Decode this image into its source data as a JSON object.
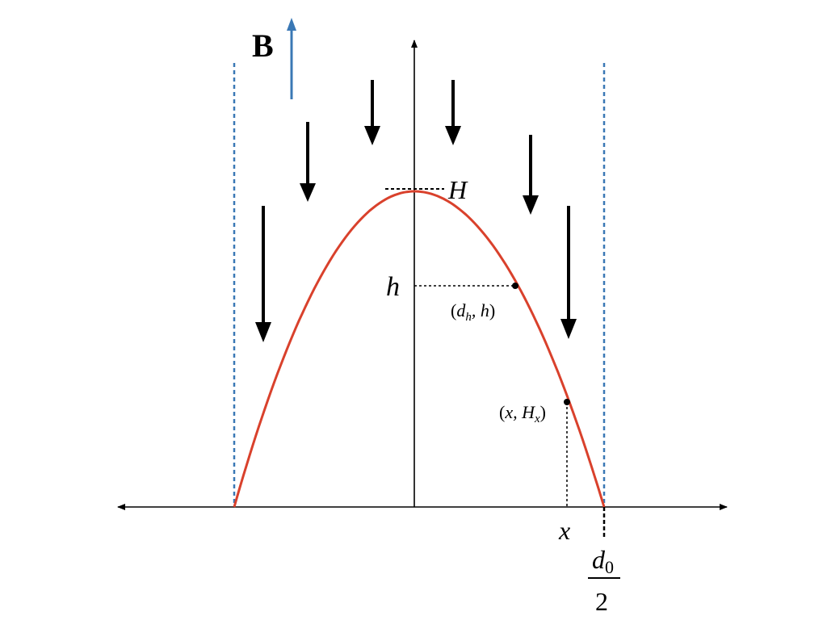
{
  "field_label": "B",
  "labels": {
    "peak": "H",
    "height": "h",
    "point_h": {
      "open": "(",
      "var": "d",
      "sub": "h",
      "rest": ", h",
      "close": ")"
    },
    "point_x": {
      "open": "(",
      "var": "x, H",
      "sub": "x",
      "close": ")"
    },
    "x_axis_mark": "x",
    "half_width": {
      "numerator": "d",
      "numerator_sub": "0",
      "denominator": "2"
    }
  },
  "colors": {
    "curve": "#d9412c",
    "boundary": "#3a78b5",
    "field_arrow": "#3a78b5",
    "ink": "#000000"
  }
}
